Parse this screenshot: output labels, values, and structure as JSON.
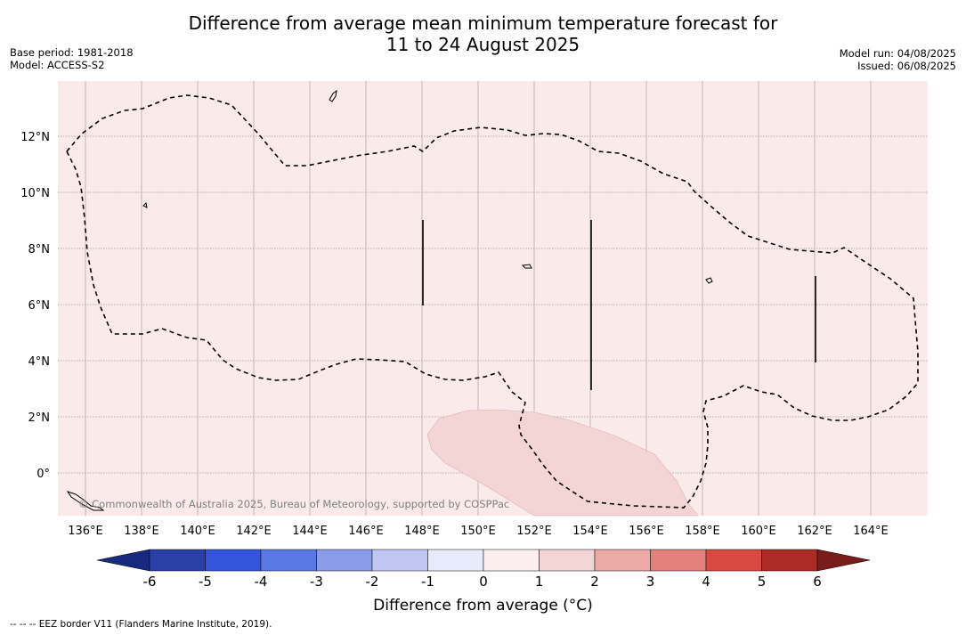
{
  "title_line1": "Difference from average mean minimum temperature forecast for",
  "title_line2": "11 to 24 August 2025",
  "base_period": "Base period: 1981-2018",
  "model": "Model: ACCESS-S2",
  "model_run": "Model run: 04/08/2025",
  "issued": "Issued: 06/08/2025",
  "copyright": "© Commonwealth of Australia 2025, Bureau of Meteorology, supported by COSPPac",
  "lon_labels": [
    {
      "value": 136,
      "label": "136°E"
    },
    {
      "value": 138,
      "label": "138°E"
    },
    {
      "value": 140,
      "label": "140°E"
    },
    {
      "value": 142,
      "label": "142°E"
    },
    {
      "value": 144,
      "label": "144°E"
    },
    {
      "value": 146,
      "label": "146°E"
    },
    {
      "value": 148,
      "label": "148°E"
    },
    {
      "value": 150,
      "label": "150°E"
    },
    {
      "value": 152,
      "label": "152°E"
    },
    {
      "value": 154,
      "label": "154°E"
    },
    {
      "value": 156,
      "label": "156°E"
    },
    {
      "value": 158,
      "label": "158°E"
    },
    {
      "value": 160,
      "label": "160°E"
    },
    {
      "value": 162,
      "label": "162°E"
    },
    {
      "value": 164,
      "label": "164°E"
    }
  ],
  "lat_labels": [
    {
      "value": 12,
      "label": "12°N"
    },
    {
      "value": 10,
      "label": "10°N"
    },
    {
      "value": 8,
      "label": "8°N"
    },
    {
      "value": 6,
      "label": "6°N"
    },
    {
      "value": 4,
      "label": "4°N"
    },
    {
      "value": 2,
      "label": "2°N"
    },
    {
      "value": 0,
      "label": "0°"
    }
  ],
  "colorbar": {
    "ticks": [
      "-6",
      "-5",
      "-4",
      "-3",
      "-2",
      "-1",
      "0",
      "1",
      "2",
      "3",
      "4",
      "5",
      "6"
    ],
    "colors": [
      "#2a3fa8",
      "#3554dc",
      "#5a78e4",
      "#8a9ce9",
      "#c0c7f2",
      "#e8ebfb",
      "#fceeee",
      "#f3d5d5",
      "#ebaaa5",
      "#e5817c",
      "#d94b42",
      "#ad2b26"
    ],
    "low_extend_color": "#172a80",
    "high_extend_color": "#7a1c1a",
    "label": "Difference from average (°C)"
  },
  "background_fill_color": "#fbeaea",
  "anomaly_patch_color": "#f3d5d5",
  "footnote": "--  --  -- EEZ border V11 (Flanders Marine Institute, 2019)."
}
